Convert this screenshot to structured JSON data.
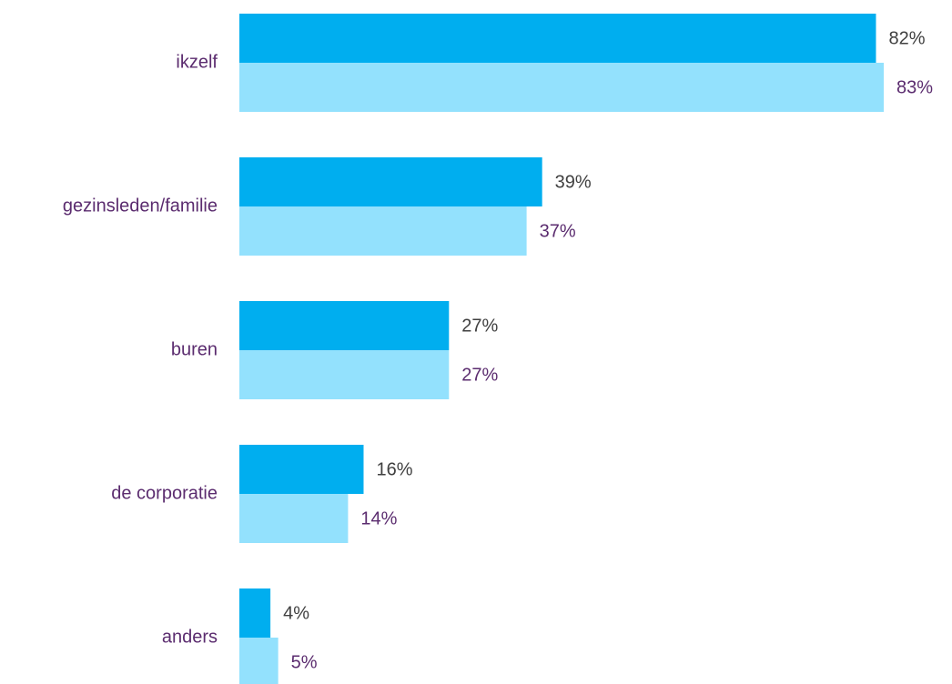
{
  "chart_data": {
    "type": "barh",
    "categories": [
      "ikzelf",
      "gezinsleden/familie",
      "buren",
      "de corporatie",
      "anders"
    ],
    "series": [
      {
        "color": "#00aeef",
        "values": [
          82,
          39,
          27,
          16,
          4
        ],
        "value_labels": [
          "82%",
          "39%",
          "27%",
          "16%",
          "4%"
        ],
        "label_color": "#404040"
      },
      {
        "color": "#93e1fd",
        "values": [
          83,
          37,
          27,
          14,
          5
        ],
        "value_labels": [
          "83%",
          "37%",
          "27%",
          "14%",
          "5%"
        ],
        "label_color": "#5b2c6f"
      }
    ],
    "xlim": [
      0,
      100
    ],
    "category_color": "#5b2c6f"
  }
}
